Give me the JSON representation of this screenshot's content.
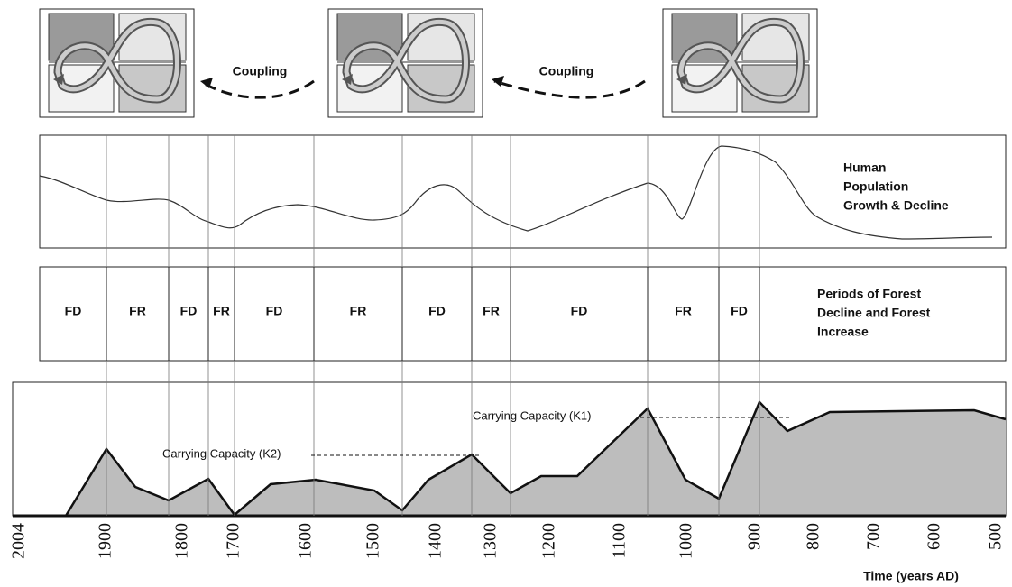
{
  "diagram": {
    "coupling_labels": [
      "Coupling",
      "Coupling"
    ],
    "population_label": [
      "Human",
      "Population",
      "Growth & Decline"
    ],
    "periods": [
      "FD",
      "FR",
      "FD",
      "FR",
      "FD",
      "FR",
      "FD",
      "FR",
      "FD",
      "FR",
      "FD"
    ],
    "periods_label": [
      "Periods of Forest",
      "Decline and Forest",
      "Increase"
    ],
    "capacity_labels": [
      "Carrying Capacity (K2)",
      "Carrying Capacity (K1)"
    ],
    "time_ticks": [
      "2004",
      "1900",
      "1800",
      "1700",
      "1600",
      "1500",
      "1400",
      "1300",
      "1200",
      "1100",
      "1000",
      "900",
      "800",
      "700",
      "600",
      "500"
    ],
    "time_axis_label": "Time (years AD)"
  }
}
